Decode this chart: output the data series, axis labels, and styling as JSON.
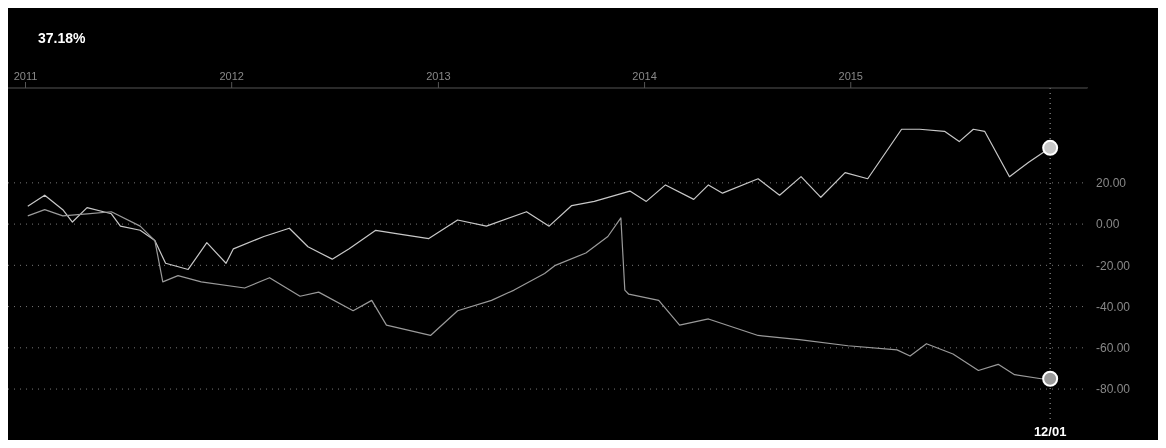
{
  "chart_data": {
    "type": "line",
    "title": "37.18%",
    "xlim": [
      "2010-12-01",
      "2016-02-25"
    ],
    "ylim": [
      -95,
      66
    ],
    "xticks": [
      "2011",
      "2012",
      "2013",
      "2014",
      "2015"
    ],
    "yticks": [
      {
        "value": 20,
        "label": "20.00"
      },
      {
        "value": 0,
        "label": "0.00"
      },
      {
        "value": -20,
        "label": "-20.00"
      },
      {
        "value": -40,
        "label": "-40.00"
      },
      {
        "value": -60,
        "label": "-60.00"
      },
      {
        "value": -80,
        "label": "-80.00"
      }
    ],
    "grid": "y",
    "line_style": "solid",
    "ref_lines": [
      {
        "axis": "x",
        "value": "2015-12-20",
        "label": "12/01"
      }
    ],
    "series": [
      {
        "color": "#c8c8c8",
        "x": [
          "2011-01-05",
          "2011-02-04",
          "2011-03-08",
          "2011-03-25",
          "2011-04-20",
          "2011-06-02",
          "2011-06-18",
          "2011-07-23",
          "2011-08-18",
          "2011-09-06",
          "2011-10-16",
          "2011-11-18",
          "2011-12-22",
          "2012-01-04",
          "2012-02-27",
          "2012-04-12",
          "2012-05-15",
          "2012-06-27",
          "2012-07-27",
          "2012-09-12",
          "2012-10-27",
          "2012-12-15",
          "2013-02-04",
          "2013-03-27",
          "2013-06-06",
          "2013-07-16",
          "2013-08-25",
          "2013-10-04",
          "2013-12-06",
          "2014-01-04",
          "2014-02-07",
          "2014-03-29",
          "2014-04-24",
          "2014-05-19",
          "2014-07-21",
          "2014-08-28",
          "2014-10-05",
          "2014-11-09",
          "2014-12-22",
          "2015-01-31",
          "2015-04-01",
          "2015-05-03",
          "2015-06-16",
          "2015-07-12",
          "2015-08-06",
          "2015-08-26",
          "2015-10-09",
          "2015-11-12",
          "2015-12-20"
        ],
        "values": [
          8.6,
          14,
          7,
          1,
          8,
          5,
          -1,
          -3,
          -8,
          -19,
          -22,
          -9,
          -19,
          -12,
          -6,
          -2,
          -11,
          -17,
          -12,
          -3,
          -5,
          -7,
          2,
          -1,
          6,
          -1,
          9,
          11,
          16,
          11,
          19,
          12,
          19,
          15,
          22,
          14,
          23,
          13,
          25,
          22,
          46,
          46,
          45,
          40,
          46,
          45,
          23,
          30,
          37
        ]
      },
      {
        "color": "#9a9a9a",
        "x": [
          "2011-01-05",
          "2011-02-04",
          "2011-03-08",
          "2011-04-20",
          "2011-06-02",
          "2011-07-23",
          "2011-08-18",
          "2011-09-01",
          "2011-09-28",
          "2011-11-08",
          "2012-01-24",
          "2012-03-08",
          "2012-05-01",
          "2012-06-03",
          "2012-08-03",
          "2012-09-05",
          "2012-10-01",
          "2012-12-18",
          "2013-02-04",
          "2013-04-05",
          "2013-05-15",
          "2013-07-08",
          "2013-07-27",
          "2013-09-19",
          "2013-10-28",
          "2013-11-20",
          "2013-11-27",
          "2013-12-04",
          "2014-01-26",
          "2014-03-04",
          "2014-04-24",
          "2014-07-21",
          "2014-10-02",
          "2014-12-27",
          "2015-03-24",
          "2015-04-16",
          "2015-05-15",
          "2015-07-01",
          "2015-08-15",
          "2015-09-19",
          "2015-10-18",
          "2015-12-04",
          "2015-12-20"
        ],
        "values": [
          4,
          7,
          4,
          5,
          6,
          -1,
          -8,
          -28,
          -25,
          -28,
          -31,
          -26,
          -35,
          -33,
          -42,
          -37,
          -49,
          -54,
          -42,
          -37,
          -32,
          -24,
          -20,
          -14,
          -6,
          3,
          -32,
          -34,
          -37,
          -49,
          -46,
          -54,
          -56,
          -59,
          -61,
          -64,
          -58,
          -63,
          -71,
          -68,
          -73,
          -75,
          -75
        ]
      }
    ]
  }
}
